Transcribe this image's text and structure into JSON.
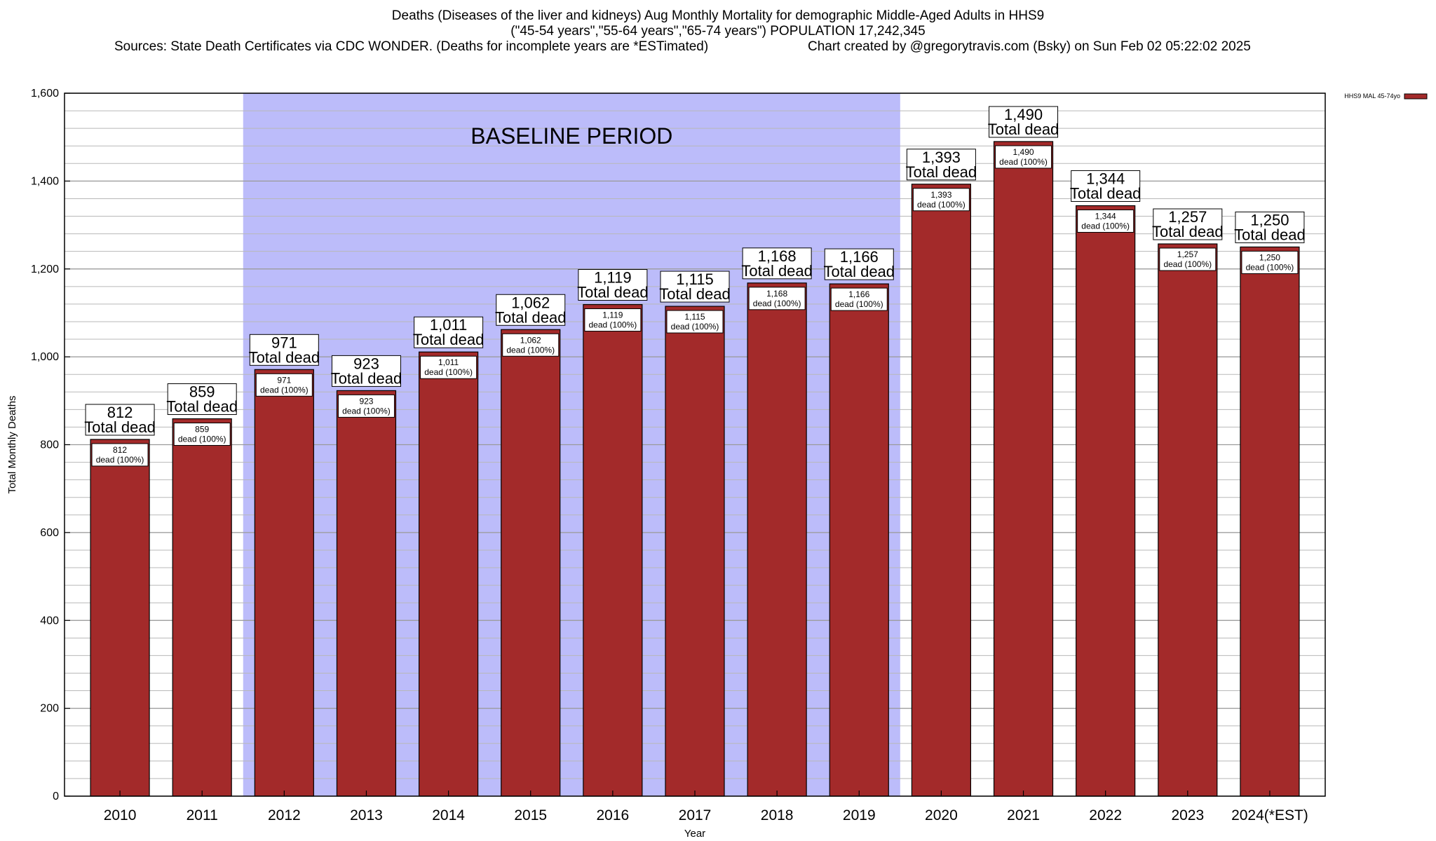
{
  "header": {
    "title_line1": "Deaths (Diseases of the liver and kidneys) Aug Monthly Mortality for demographic Middle-Aged Adults in HHS9",
    "title_line2": "(\"45-54 years\",\"55-64 years\",\"65-74 years\") POPULATION 17,242,345",
    "sources": "Sources: State Death Certificates via CDC WONDER. (Deaths for incomplete years are *ESTimated)",
    "credit": "Chart created by @gregorytravis.com (Bsky) on Sun Feb 02 05:22:02 2025"
  },
  "chart_data": {
    "type": "bar",
    "categories": [
      "2010",
      "2011",
      "2012",
      "2013",
      "2014",
      "2015",
      "2016",
      "2017",
      "2018",
      "2019",
      "2020",
      "2021",
      "2022",
      "2023",
      "2024(*EST)"
    ],
    "series": [
      {
        "name": "HHS9 MAL 45-74yo",
        "values": [
          812,
          859,
          971,
          923,
          1011,
          1062,
          1119,
          1115,
          1168,
          1166,
          1393,
          1490,
          1344,
          1257,
          1250
        ]
      }
    ],
    "value_labels": [
      "812",
      "859",
      "971",
      "923",
      "1,011",
      "1,062",
      "1,119",
      "1,115",
      "1,168",
      "1,166",
      "1,393",
      "1,490",
      "1,344",
      "1,257",
      "1,250"
    ],
    "top_label_suffix": "Total dead",
    "inner_label_suffix": "dead (100%)",
    "xlabel": "Year",
    "ylabel": "Total Monthly Deaths",
    "ylim": [
      0,
      1600
    ],
    "yticks": [
      0,
      200,
      400,
      600,
      800,
      1000,
      1200,
      1400,
      1600
    ],
    "ytick_labels": [
      "0",
      "200",
      "400",
      "600",
      "800",
      "1,000",
      "1,200",
      "1,400",
      "1,600"
    ],
    "minor_gridline_step": 40,
    "grid": true,
    "baseline_period": {
      "label": "BASELINE PERIOD",
      "from": "2012",
      "to": "2019",
      "color": "#bcbcfa"
    },
    "bar_color": "#a32a2a",
    "legend": {
      "entry": "HHS9 MAL 45-74yo",
      "placement": "top-right"
    }
  }
}
